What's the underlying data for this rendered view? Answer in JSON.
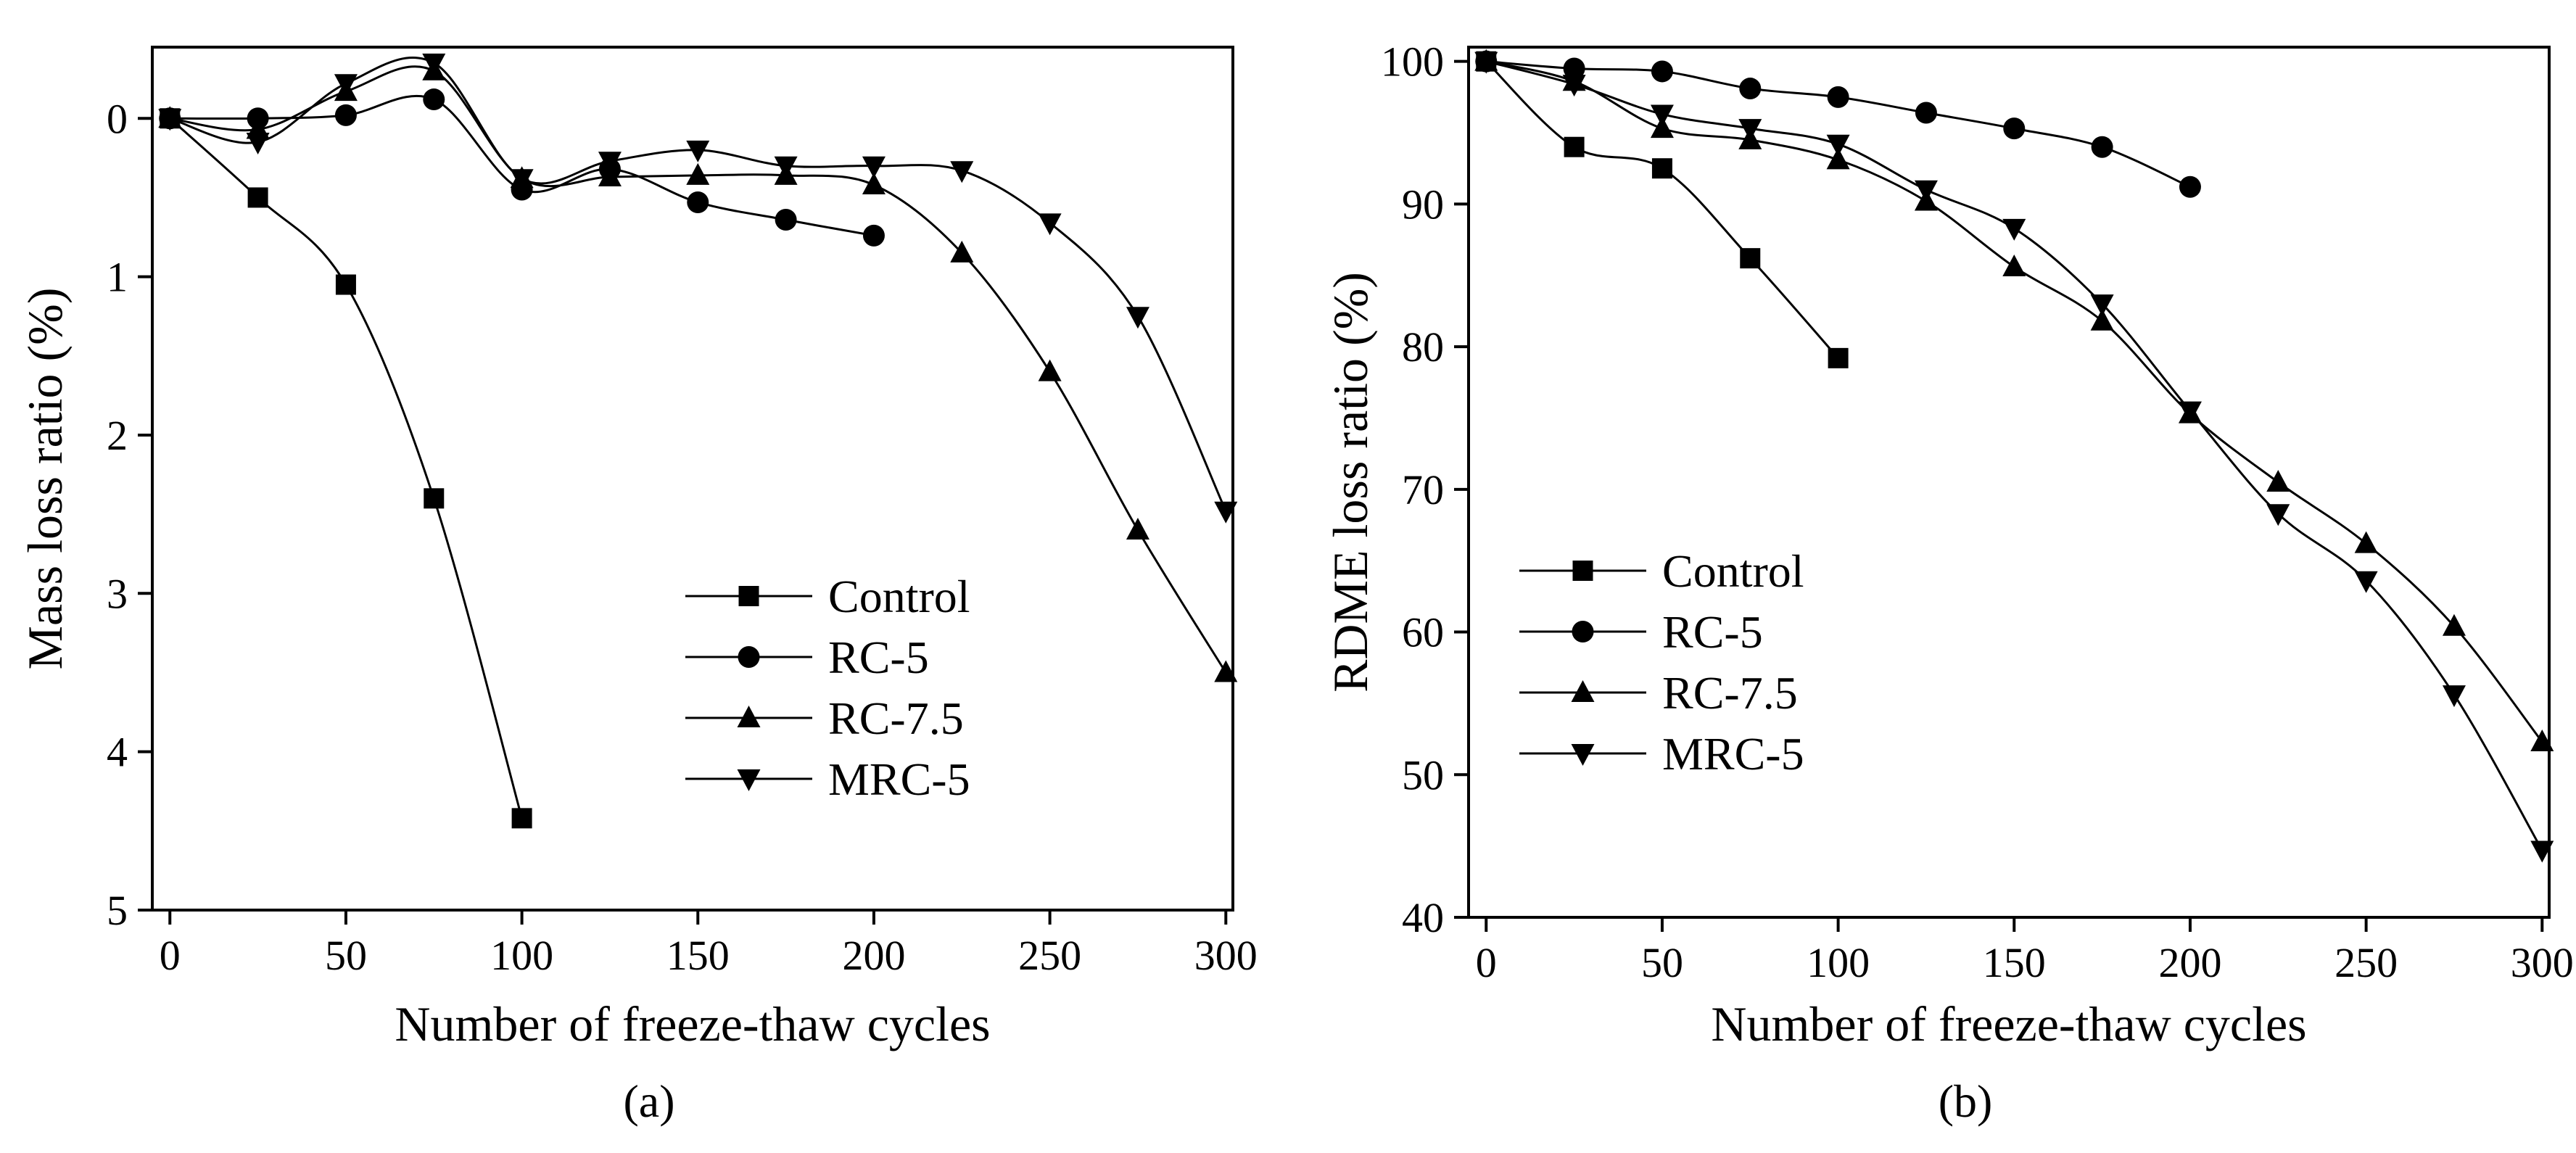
{
  "chart_data": [
    {
      "id": "a",
      "type": "line",
      "panel_label": "(a)",
      "xlabel": "Number of freeze-thaw cycles",
      "ylabel": "Mass loss ratio (%)",
      "xlim": [
        -5,
        302
      ],
      "ylim": [
        -0.45,
        5
      ],
      "y_inverted": true,
      "xticks": [
        0,
        50,
        100,
        150,
        200,
        250,
        300
      ],
      "yticks": [
        0,
        1,
        2,
        3,
        4,
        5
      ],
      "legend_position": "bottom-right",
      "series": [
        {
          "name": "Control",
          "marker": "square",
          "x": [
            0,
            25,
            50,
            75,
            100
          ],
          "y": [
            0,
            0.5,
            1.05,
            2.4,
            4.42
          ]
        },
        {
          "name": "RC-5",
          "marker": "circle",
          "x": [
            0,
            25,
            50,
            75,
            100,
            125,
            150,
            175,
            200
          ],
          "y": [
            0,
            0,
            -0.02,
            -0.12,
            0.45,
            0.32,
            0.53,
            0.64,
            0.74
          ]
        },
        {
          "name": "RC-7.5",
          "marker": "triangle-up",
          "x": [
            0,
            25,
            50,
            75,
            100,
            125,
            150,
            175,
            200,
            225,
            250,
            275,
            300
          ],
          "y": [
            0,
            0.07,
            -0.17,
            -0.3,
            0.38,
            0.37,
            0.36,
            0.36,
            0.42,
            0.85,
            1.6,
            2.6,
            3.5
          ]
        },
        {
          "name": "MRC-5",
          "marker": "triangle-down",
          "x": [
            0,
            25,
            50,
            75,
            100,
            125,
            150,
            175,
            200,
            225,
            250,
            275,
            300
          ],
          "y": [
            0,
            0.15,
            -0.22,
            -0.35,
            0.38,
            0.27,
            0.2,
            0.3,
            0.3,
            0.33,
            0.66,
            1.25,
            2.48
          ]
        }
      ]
    },
    {
      "id": "b",
      "type": "line",
      "panel_label": "(b)",
      "xlabel": "Number of freeze-thaw cycles",
      "ylabel": "RDME loss ratio (%)",
      "xlim": [
        -5,
        302
      ],
      "ylim": [
        40,
        101
      ],
      "y_inverted": false,
      "xticks": [
        0,
        50,
        100,
        150,
        200,
        250,
        300
      ],
      "yticks": [
        40,
        50,
        60,
        70,
        80,
        90,
        100
      ],
      "legend_position": "center-left",
      "series": [
        {
          "name": "Control",
          "marker": "square",
          "x": [
            0,
            25,
            50,
            75,
            100
          ],
          "y": [
            100,
            94,
            92.5,
            86.2,
            79.2
          ]
        },
        {
          "name": "RC-5",
          "marker": "circle",
          "x": [
            0,
            25,
            50,
            75,
            100,
            125,
            150,
            175,
            200
          ],
          "y": [
            100,
            99.5,
            99.3,
            98.1,
            97.5,
            96.4,
            95.3,
            94,
            91.2
          ]
        },
        {
          "name": "RC-7.5",
          "marker": "triangle-up",
          "x": [
            0,
            25,
            50,
            75,
            100,
            125,
            150,
            175,
            200,
            225,
            250,
            275,
            300
          ],
          "y": [
            100,
            98.6,
            95.3,
            94.5,
            93.1,
            90.2,
            85.6,
            81.8,
            75.3,
            70.5,
            66.2,
            60.4,
            52.3
          ]
        },
        {
          "name": "MRC-5",
          "marker": "triangle-down",
          "x": [
            0,
            25,
            50,
            75,
            100,
            125,
            150,
            175,
            200,
            225,
            250,
            275,
            300
          ],
          "y": [
            100,
            98.4,
            96.3,
            95.3,
            94.2,
            91,
            88.3,
            83,
            75.5,
            68.3,
            63.6,
            55.6,
            44.7
          ]
        }
      ]
    }
  ]
}
